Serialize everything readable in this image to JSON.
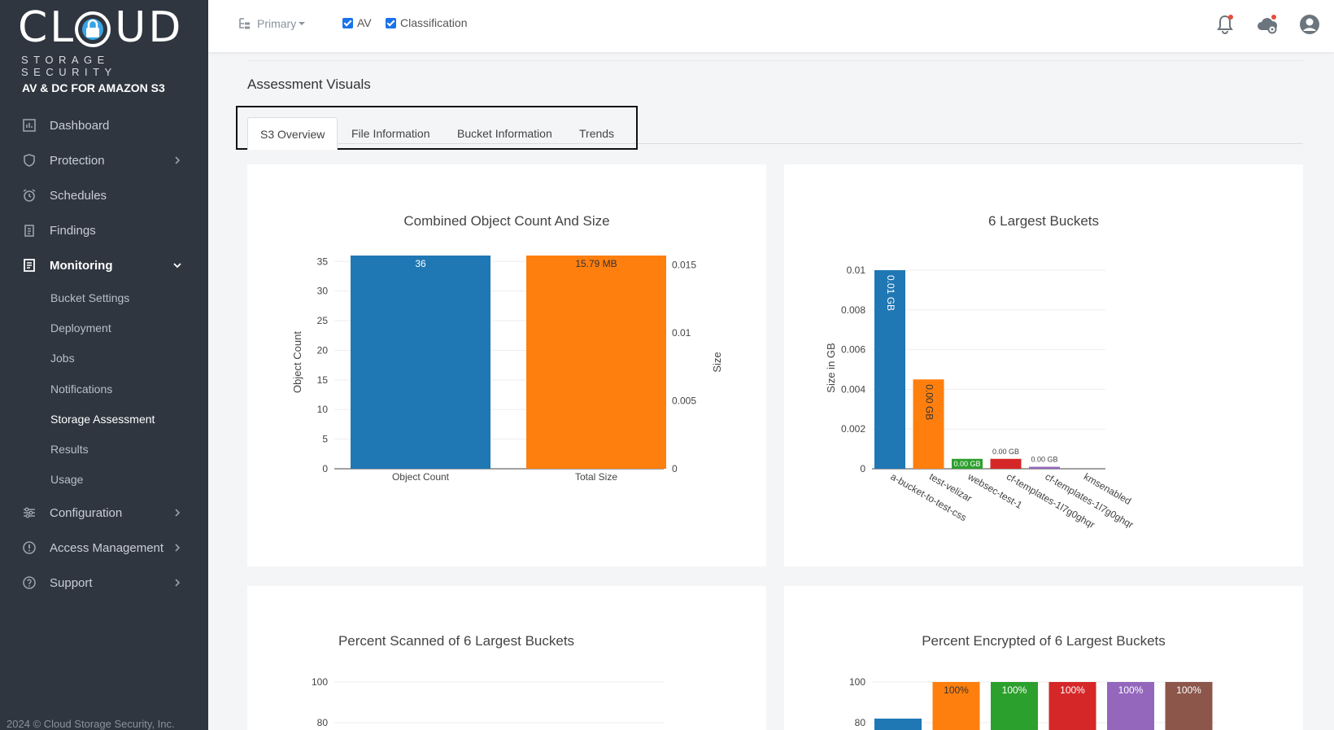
{
  "brand": {
    "logo_text": "CL  UD",
    "logo_sub": "STORAGE SECURITY",
    "product": "AV & DC FOR AMAZON S3"
  },
  "nav": {
    "dashboard": "Dashboard",
    "protection": "Protection",
    "schedules": "Schedules",
    "findings": "Findings",
    "monitoring": "Monitoring",
    "sub": [
      "Bucket Settings",
      "Deployment",
      "Jobs",
      "Notifications",
      "Storage Assessment",
      "Results",
      "Usage"
    ],
    "configuration": "Configuration",
    "access": "Access Management",
    "support": "Support"
  },
  "footer": "2024 © Cloud Storage Security, Inc.",
  "topbar": {
    "primary": "Primary",
    "av": "AV",
    "classification": "Classification"
  },
  "page": {
    "title": "Assessment Visuals",
    "tabs": [
      "S3 Overview",
      "File Information",
      "Bucket Information",
      "Trends"
    ]
  },
  "colors": {
    "blue": "#1f77b4",
    "orange": "#ff7f0e",
    "green": "#2ca02c",
    "red": "#d62728",
    "purple": "#9467bd",
    "brown": "#8c564b"
  },
  "chart_data": [
    {
      "type": "bar",
      "title": "Combined Object Count And Size",
      "categories": [
        "Object Count",
        "Total Size"
      ],
      "values": [
        36,
        15.79
      ],
      "data_labels": [
        "36",
        "15.79 MB"
      ],
      "ylabel": "Object Count",
      "y2label": "Size",
      "ylim": [
        0,
        36
      ],
      "yticks": [
        0,
        5,
        10,
        15,
        20,
        25,
        30,
        35
      ],
      "y2ticks": [
        "0",
        "0.005",
        "0.01",
        "0.015"
      ],
      "y2lim": [
        0,
        0.0157
      ]
    },
    {
      "type": "bar",
      "title": "6 Largest Buckets",
      "categories": [
        "a-bucket-to-test-css",
        "test-velizar",
        "websec-test-1",
        "cf-templates-1l7g0ghqr",
        "cf-templates-1l7g0ghqr",
        "kmsenabled"
      ],
      "values": [
        0.01,
        0.0045,
        0.0005,
        0.0005,
        0.0001,
        0
      ],
      "data_labels": [
        "0.01 GB",
        "0.00 GB",
        "0.00 GB",
        "0.00 GB",
        "0.00 GB",
        ""
      ],
      "ylabel": "Size in GB",
      "ylim": [
        0,
        0.01
      ],
      "yticks": [
        "0",
        "0.002",
        "0.004",
        "0.006",
        "0.008",
        "0.01"
      ]
    },
    {
      "type": "bar",
      "title": "Percent Scanned of 6 Largest Buckets",
      "yticks": [
        "100",
        "80"
      ]
    },
    {
      "type": "bar",
      "title": "Percent Encrypted of 6 Largest Buckets",
      "values": [
        82,
        100,
        100,
        100,
        100,
        100
      ],
      "data_labels": [
        "",
        "100%",
        "100%",
        "100%",
        "100%",
        "100%"
      ],
      "yticks": [
        "100",
        "80"
      ]
    }
  ]
}
